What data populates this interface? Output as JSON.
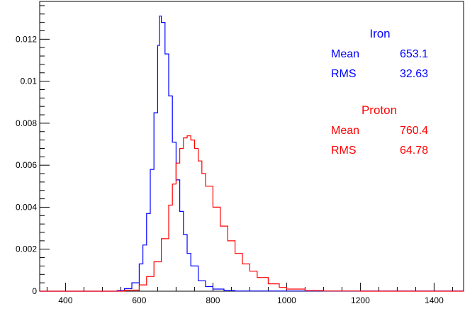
{
  "chart_data": {
    "type": "line",
    "title": "",
    "xlabel": "",
    "ylabel": "",
    "xlim": [
      330,
      1480
    ],
    "ylim": [
      0,
      0.0138
    ],
    "x_ticks": [
      400,
      600,
      800,
      1000,
      1200,
      1400
    ],
    "x_tick_labels": [
      "400",
      "600",
      "800",
      "1000",
      "1200",
      "1400"
    ],
    "y_ticks": [
      0,
      0.002,
      0.004,
      0.006,
      0.008,
      0.01,
      0.012
    ],
    "y_tick_labels": [
      "0",
      "0.002",
      "0.004",
      "0.006",
      "0.008",
      "0.01",
      "0.012"
    ],
    "grid": false,
    "legend_placement": "top-right",
    "series": [
      {
        "name": "Iron",
        "color": "#0000ff",
        "stats": {
          "mean_label": "Mean",
          "mean": "653.1",
          "rms_label": "RMS",
          "rms": "32.63"
        },
        "x": [
          330,
          500,
          540,
          560,
          580,
          600,
          610,
          620,
          630,
          640,
          650,
          655,
          660,
          670,
          680,
          690,
          700,
          710,
          720,
          730,
          740,
          760,
          780,
          800,
          830,
          860,
          1480
        ],
        "y": [
          0,
          0,
          3e-05,
          0.00012,
          0.0004,
          0.0013,
          0.0022,
          0.0037,
          0.0058,
          0.0085,
          0.0117,
          0.0131,
          0.0128,
          0.0113,
          0.0093,
          0.0071,
          0.0053,
          0.0038,
          0.0027,
          0.0018,
          0.0012,
          0.0005,
          0.00022,
          0.0001,
          3e-05,
          1e-05,
          0
        ]
      },
      {
        "name": "Proton",
        "color": "#ff0000",
        "stats": {
          "mean_label": "Mean",
          "mean": "760.4",
          "rms_label": "RMS",
          "rms": "64.78"
        },
        "x": [
          330,
          520,
          560,
          600,
          620,
          640,
          660,
          680,
          690,
          700,
          710,
          720,
          730,
          740,
          750,
          760,
          770,
          780,
          800,
          820,
          840,
          860,
          880,
          900,
          920,
          950,
          980,
          1000,
          1050,
          1100,
          1200,
          1480
        ],
        "y": [
          0,
          0,
          5e-05,
          0.0003,
          0.0007,
          0.0014,
          0.0025,
          0.0041,
          0.0051,
          0.0061,
          0.0068,
          0.0073,
          0.0074,
          0.0072,
          0.0068,
          0.0062,
          0.0056,
          0.005,
          0.004,
          0.0031,
          0.0024,
          0.0018,
          0.0013,
          0.00095,
          0.00065,
          0.00035,
          0.00018,
          0.0001,
          3e-05,
          1e-05,
          0,
          0
        ]
      }
    ]
  }
}
